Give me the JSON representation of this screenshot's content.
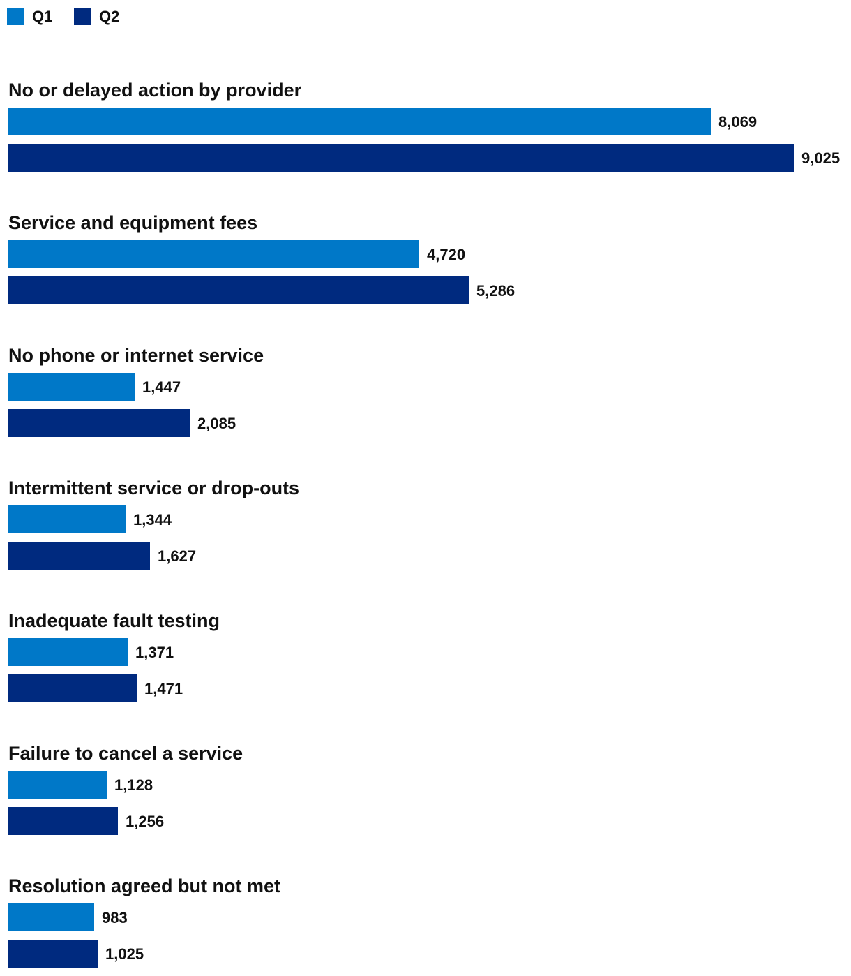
{
  "chart_data": {
    "type": "bar",
    "orientation": "horizontal",
    "title": "",
    "xlabel": "",
    "ylabel": "",
    "grid": false,
    "legend_position": "top-left",
    "categories": [
      "No or delayed action by provider",
      "Service and equipment fees",
      "No phone or internet service",
      "Intermittent service or drop-outs",
      "Inadequate fault testing",
      "Failure to cancel a service",
      "Resolution agreed but not met"
    ],
    "series": [
      {
        "name": "Q1",
        "color": "#0078c8",
        "values": [
          8069,
          4720,
          1447,
          1344,
          1371,
          1128,
          983
        ],
        "labels": [
          "8,069",
          "4,720",
          "1,447",
          "1,344",
          "1,371",
          "1,128",
          "983"
        ]
      },
      {
        "name": "Q2",
        "color": "#002a7f",
        "values": [
          9025,
          5286,
          2085,
          1627,
          1471,
          1256,
          1025
        ],
        "labels": [
          "9,025",
          "5,286",
          "2,085",
          "1,627",
          "1,471",
          "1,256",
          "1,025"
        ]
      }
    ],
    "xlim": [
      0,
      9025
    ]
  }
}
